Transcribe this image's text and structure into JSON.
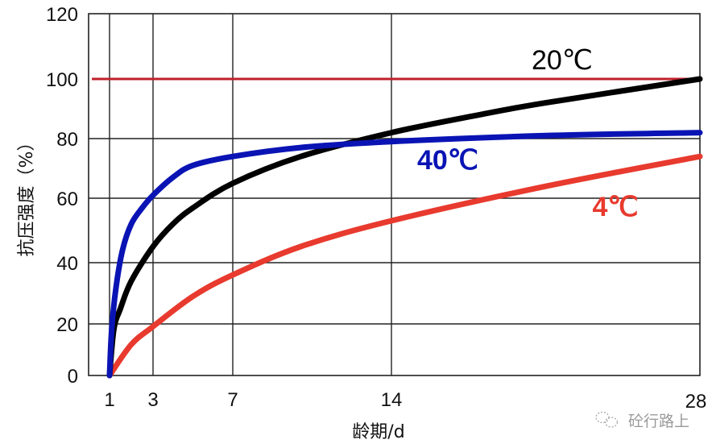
{
  "chart_data": {
    "type": "line",
    "title": "",
    "xlabel": "龄期/d",
    "ylabel": "抗压强度（%）",
    "xticks": [
      "1",
      "3",
      "7",
      "14",
      "28"
    ],
    "xtick_values": [
      1,
      3,
      7,
      14,
      28
    ],
    "yticks": [
      "0",
      "20",
      "40",
      "60",
      "80",
      "100",
      "120"
    ],
    "ytick_values": [
      0,
      20,
      40,
      60,
      80,
      100,
      120
    ],
    "ylim": [
      0,
      120
    ],
    "xlim": [
      1,
      28
    ],
    "grid": true,
    "legend_position": "inline labels",
    "reference_line": {
      "y": 100,
      "color": "#c0202a"
    },
    "series": [
      {
        "name": "20℃",
        "label": "20℃",
        "color": "#000000",
        "x": [
          1,
          1.2,
          1.5,
          2,
          3,
          4,
          5,
          7,
          10,
          14,
          18,
          21,
          28
        ],
        "values": [
          0,
          18,
          25,
          34,
          45,
          52,
          57,
          65,
          74,
          82,
          88,
          92,
          100
        ]
      },
      {
        "name": "40℃",
        "label": "40℃",
        "color": "#0a14b4",
        "x": [
          1,
          1.1,
          1.3,
          1.6,
          2,
          2.5,
          3,
          4,
          5,
          7,
          10,
          14,
          21,
          28
        ],
        "values": [
          0,
          18,
          32,
          44,
          52,
          57,
          61,
          67,
          71,
          74,
          77,
          79,
          81,
          82
        ]
      },
      {
        "name": "4℃",
        "label": "4℃",
        "color": "#e83a2e",
        "x": [
          1,
          2,
          3,
          5,
          7,
          10,
          14,
          21,
          28
        ],
        "values": [
          0,
          12,
          19,
          29,
          36,
          45,
          53,
          64,
          74
        ]
      }
    ],
    "annotations": [
      {
        "text": "20℃",
        "x": 24,
        "y": 108,
        "color": "#000000"
      },
      {
        "text": "40℃",
        "x": 15.2,
        "y": 74,
        "color": "#0a14b4"
      },
      {
        "text": "4℃",
        "x": 21.5,
        "y": 57,
        "color": "#e83a2e"
      }
    ]
  },
  "watermark": {
    "text": "砼行路上",
    "icon": "wechat-icon"
  }
}
